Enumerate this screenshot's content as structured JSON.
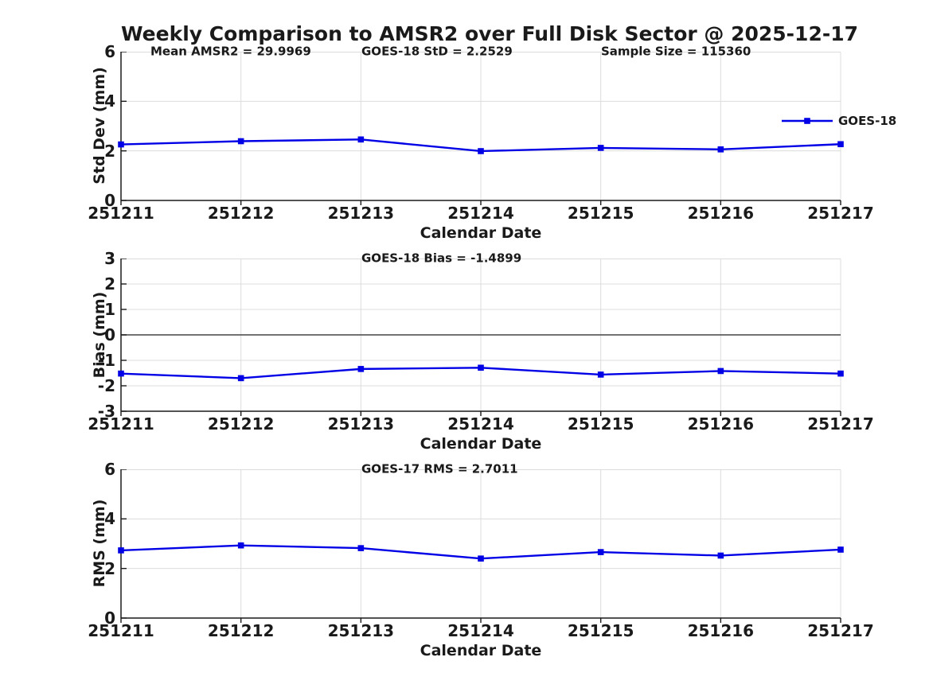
{
  "title": "Weekly Comparison to AMSR2 over Full Disk Sector @ 2025-12-17",
  "legend": {
    "label": "GOES-18",
    "color": "#0000e6"
  },
  "chart_data": [
    {
      "name": "std-dev",
      "type": "line",
      "annotations": [
        "Mean AMSR2 = 29.9969",
        "GOES-18 StD = 2.2529",
        "Sample Size = 115360"
      ],
      "categories": [
        "251211",
        "251212",
        "251213",
        "251214",
        "251215",
        "251216",
        "251217"
      ],
      "series": [
        {
          "name": "GOES-18",
          "color": "#0000e6",
          "marker": "square",
          "values": [
            2.26,
            2.39,
            2.46,
            1.99,
            2.12,
            2.06,
            2.27
          ]
        }
      ],
      "xlabel": "Calendar Date",
      "ylabel": "Std Dev (mm)",
      "ylim": [
        0,
        6
      ],
      "yticks": [
        0,
        2,
        4,
        6
      ],
      "grid": true,
      "zero_line": false,
      "legend_position": "top-right"
    },
    {
      "name": "bias",
      "type": "line",
      "annotations": [
        "GOES-18 Bias  = -1.4899"
      ],
      "categories": [
        "251211",
        "251212",
        "251213",
        "251214",
        "251215",
        "251216",
        "251217"
      ],
      "series": [
        {
          "name": "GOES-18",
          "color": "#0000e6",
          "marker": "square",
          "values": [
            -1.52,
            -1.7,
            -1.34,
            -1.29,
            -1.56,
            -1.42,
            -1.52
          ]
        }
      ],
      "xlabel": "Calendar Date",
      "ylabel": "Bias (mm)",
      "ylim": [
        -3,
        3
      ],
      "yticks": [
        -3,
        -2,
        -1,
        0,
        1,
        2,
        3
      ],
      "grid": true,
      "zero_line": true,
      "legend_position": "none"
    },
    {
      "name": "rms",
      "type": "line",
      "annotations": [
        "GOES-17 RMS = 2.7011"
      ],
      "categories": [
        "251211",
        "251212",
        "251213",
        "251214",
        "251215",
        "251216",
        "251217"
      ],
      "series": [
        {
          "name": "GOES-18",
          "color": "#0000e6",
          "marker": "square",
          "values": [
            2.73,
            2.93,
            2.82,
            2.4,
            2.66,
            2.52,
            2.76
          ]
        }
      ],
      "xlabel": "Calendar Date",
      "ylabel": "RMS (mm)",
      "ylim": [
        0,
        6
      ],
      "yticks": [
        0,
        2,
        4,
        6
      ],
      "grid": true,
      "zero_line": false,
      "legend_position": "none"
    }
  ]
}
